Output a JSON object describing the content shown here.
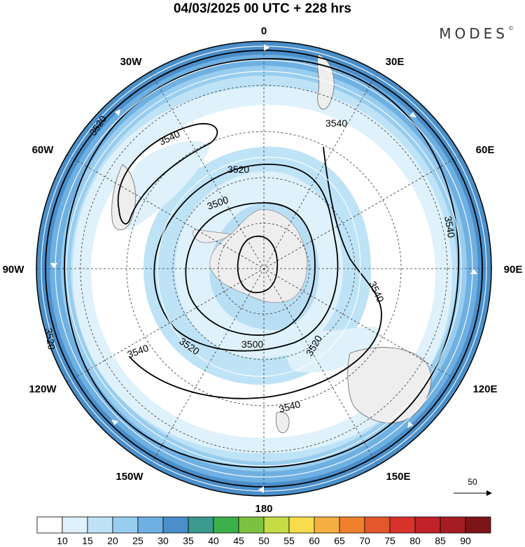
{
  "title": "04/03/2025  00 UTC  + 228 hrs",
  "brand": "MODES",
  "brand_mark": "©",
  "longitude_labels": {
    "lon_0": "0",
    "lon_30e": "30E",
    "lon_60e": "60E",
    "lon_90e": "90E",
    "lon_120e": "120E",
    "lon_150e": "150E",
    "lon_180": "180",
    "lon_150w": "150W",
    "lon_120w": "120W",
    "lon_90w": "90W",
    "lon_60w": "60W",
    "lon_30w": "30W"
  },
  "contour_labels": [
    "3520",
    "3540",
    "3540",
    "3520",
    "3500",
    "3540",
    "3540",
    "3500",
    "3520",
    "3520",
    "3540",
    "3540",
    "3520"
  ],
  "reference_vector": "50",
  "colorbar": {
    "labels": [
      "10",
      "15",
      "20",
      "25",
      "30",
      "35",
      "40",
      "45",
      "50",
      "55",
      "60",
      "65",
      "70",
      "75",
      "80",
      "85",
      "90"
    ],
    "colors": [
      "#ffffff",
      "#dff1fb",
      "#bfe3f6",
      "#98cdef",
      "#6fb0e2",
      "#4a8fca",
      "#3a9a8e",
      "#3bb04a",
      "#7cc241",
      "#c6dc45",
      "#f7dc4d",
      "#f6b042",
      "#f0802d",
      "#e4572d",
      "#d8322b",
      "#c12128",
      "#a51c22",
      "#7d1418"
    ]
  },
  "colors": {
    "land": "#eeeeee",
    "contour": "#000000",
    "grid": "#333333"
  },
  "projection": "polar-stereographic-south"
}
